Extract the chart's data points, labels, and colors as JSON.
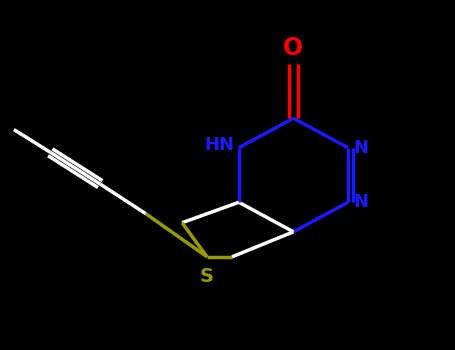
{
  "background_color": "#000000",
  "bond_color": "#ffffff",
  "nitrogen_color": "#1a1aff",
  "oxygen_color": "#ff0000",
  "sulfur_color": "#999900",
  "bond_width": 2.5,
  "figsize": [
    4.55,
    3.5
  ],
  "dpi": 100,
  "xlim": [
    0,
    10
  ],
  "ylim": [
    0,
    7.7
  ]
}
